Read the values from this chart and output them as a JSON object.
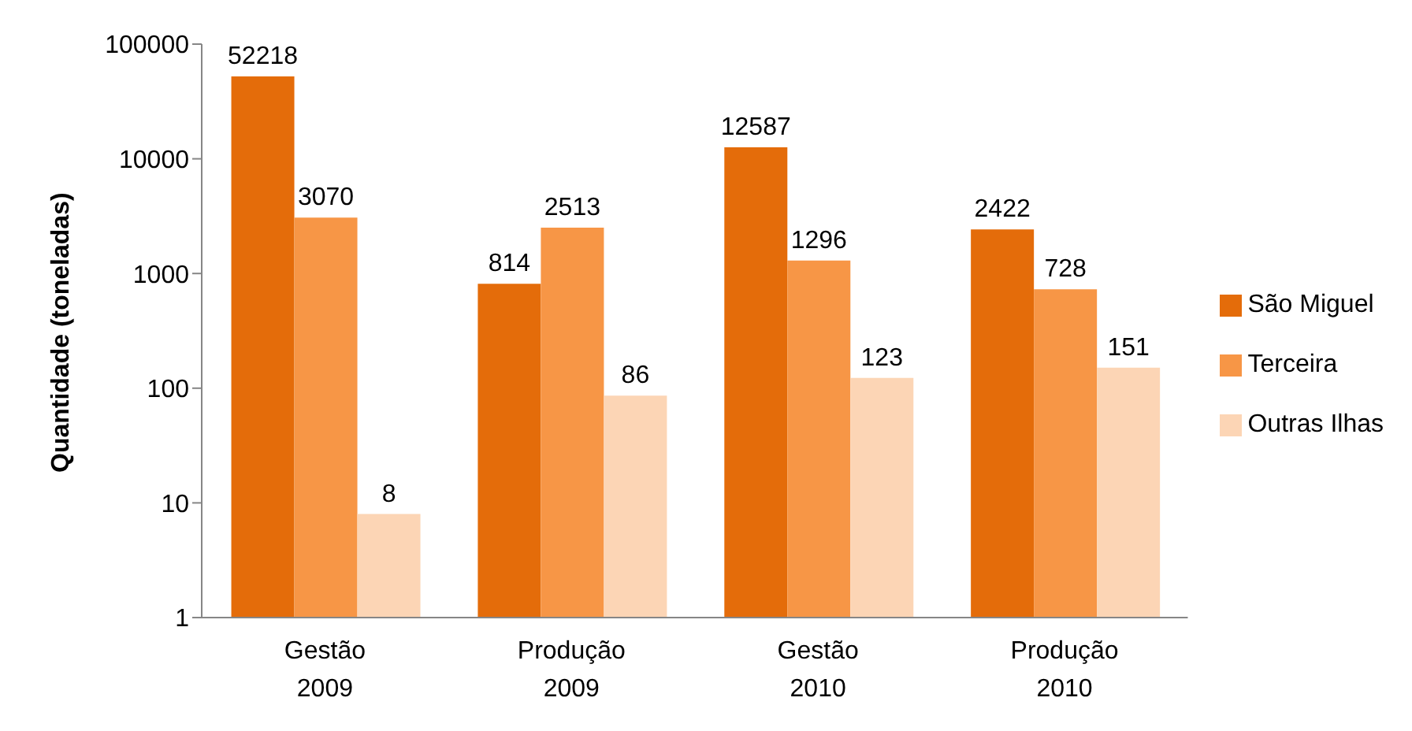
{
  "chart_data": {
    "type": "bar",
    "ylabel": "Quantidade (toneladas)",
    "categories": [
      "Gestão 2009",
      "Produção 2009",
      "Gestão 2010",
      "Produção 2010"
    ],
    "series": [
      {
        "name": "São Miguel",
        "color": "#e46c0a",
        "values": [
          52218,
          814,
          12587,
          2422
        ]
      },
      {
        "name": "Terceira",
        "color": "#f79646",
        "values": [
          3070,
          2513,
          1296,
          728
        ]
      },
      {
        "name": "Outras Ilhas",
        "color": "#fcd5b5",
        "values": [
          8,
          86,
          123,
          151
        ]
      }
    ],
    "log": true,
    "ylim": [
      1,
      100000
    ],
    "yticks": [
      1,
      10,
      100,
      1000,
      10000,
      100000
    ],
    "data_labels": true,
    "legend": "right",
    "grid": false
  }
}
